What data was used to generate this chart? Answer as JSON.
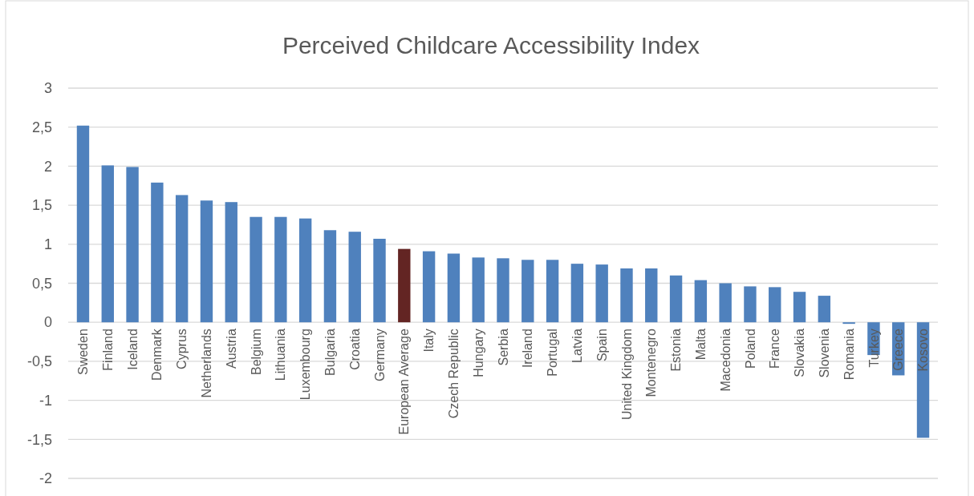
{
  "chart_data": {
    "type": "bar",
    "title": "Perceived Childcare Accessibility Index",
    "categories": [
      "Sweden",
      "Finland",
      "Iceland",
      "Denmark",
      "Cyprus",
      "Netherlands",
      "Austria",
      "Belgium",
      "Lithuania",
      "Luxembourg",
      "Bulgaria",
      "Croatia",
      "Germany",
      "European Average",
      "Italy",
      "Czech Republic",
      "Hungary",
      "Serbia",
      "Ireland",
      "Portugal",
      "Latvia",
      "Spain",
      "United Kingdom",
      "Montenegro",
      "Estonia",
      "Malta",
      "Macedonia",
      "Poland",
      "France",
      "Slovakia",
      "Slovenia",
      "Romania",
      "Turkey",
      "Greece",
      "Kosovo"
    ],
    "values": [
      2.52,
      2.01,
      1.99,
      1.79,
      1.63,
      1.56,
      1.54,
      1.35,
      1.35,
      1.33,
      1.18,
      1.16,
      1.07,
      0.94,
      0.91,
      0.88,
      0.83,
      0.82,
      0.8,
      0.8,
      0.75,
      0.74,
      0.69,
      0.69,
      0.6,
      0.54,
      0.5,
      0.46,
      0.45,
      0.39,
      0.34,
      -0.02,
      -0.42,
      -0.68,
      -1.48
    ],
    "colors": [
      "#4f81bd",
      "#4f81bd",
      "#4f81bd",
      "#4f81bd",
      "#4f81bd",
      "#4f81bd",
      "#4f81bd",
      "#4f81bd",
      "#4f81bd",
      "#4f81bd",
      "#4f81bd",
      "#4f81bd",
      "#4f81bd",
      "#632523",
      "#4f81bd",
      "#4f81bd",
      "#4f81bd",
      "#4f81bd",
      "#4f81bd",
      "#4f81bd",
      "#4f81bd",
      "#4f81bd",
      "#4f81bd",
      "#4f81bd",
      "#4f81bd",
      "#4f81bd",
      "#4f81bd",
      "#4f81bd",
      "#4f81bd",
      "#4f81bd",
      "#4f81bd",
      "#4f81bd",
      "#4f81bd",
      "#4f81bd",
      "#4f81bd"
    ],
    "ylim": [
      -2,
      3
    ],
    "yticks": [
      {
        "value": -2,
        "label": "-2"
      },
      {
        "value": -1.5,
        "label": "-1,5"
      },
      {
        "value": -1,
        "label": "-1"
      },
      {
        "value": -0.5,
        "label": "-0,5"
      },
      {
        "value": 0,
        "label": "0"
      },
      {
        "value": 0.5,
        "label": "0,5"
      },
      {
        "value": 1,
        "label": "1"
      },
      {
        "value": 1.5,
        "label": "1,5"
      },
      {
        "value": 2,
        "label": "2"
      },
      {
        "value": 2.5,
        "label": "2,5"
      },
      {
        "value": 3,
        "label": "3"
      }
    ],
    "grid": "y"
  }
}
